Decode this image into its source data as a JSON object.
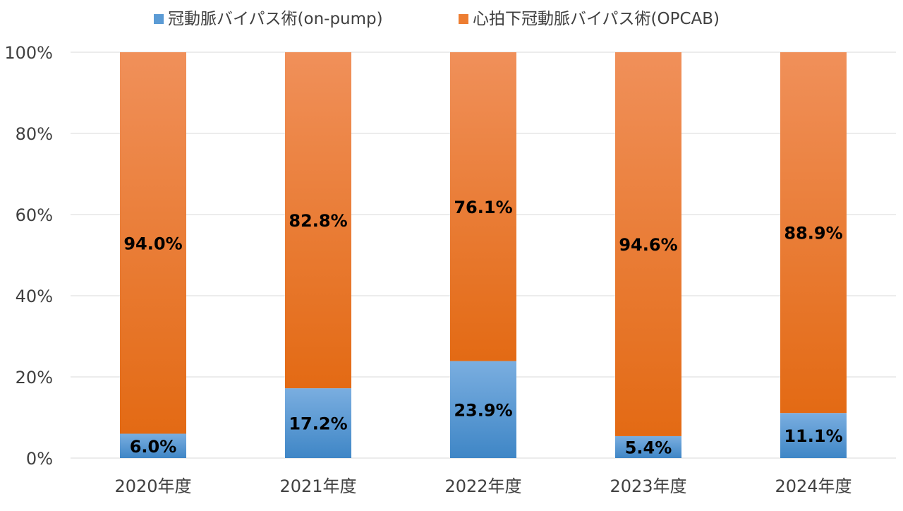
{
  "chart_data": {
    "type": "bar",
    "stacked": "percent",
    "categories": [
      "2020年度",
      "2021年度",
      "2022年度",
      "2023年度",
      "2024年度"
    ],
    "series": [
      {
        "name": "冠動脈バイパス術(on-pump)",
        "values": [
          6.0,
          17.2,
          23.9,
          5.4,
          11.1
        ],
        "labels": [
          "6.0%",
          "17.2%",
          "23.9%",
          "5.4%",
          "11.1%"
        ],
        "color": "#5b9bd5"
      },
      {
        "name": "心拍下冠動脈バイパス術(OPCAB)",
        "values": [
          94.0,
          82.8,
          76.1,
          94.6,
          88.9
        ],
        "labels": [
          "94.0%",
          "82.8%",
          "76.1%",
          "94.6%",
          "88.9%"
        ],
        "color": "#ed7d31"
      }
    ],
    "ylim": [
      0,
      100
    ],
    "yticks": [
      0,
      20,
      40,
      60,
      80,
      100
    ],
    "ytick_labels": [
      "0%",
      "20%",
      "40%",
      "60%",
      "80%",
      "100%"
    ],
    "grid": true,
    "legend_position": "top"
  }
}
